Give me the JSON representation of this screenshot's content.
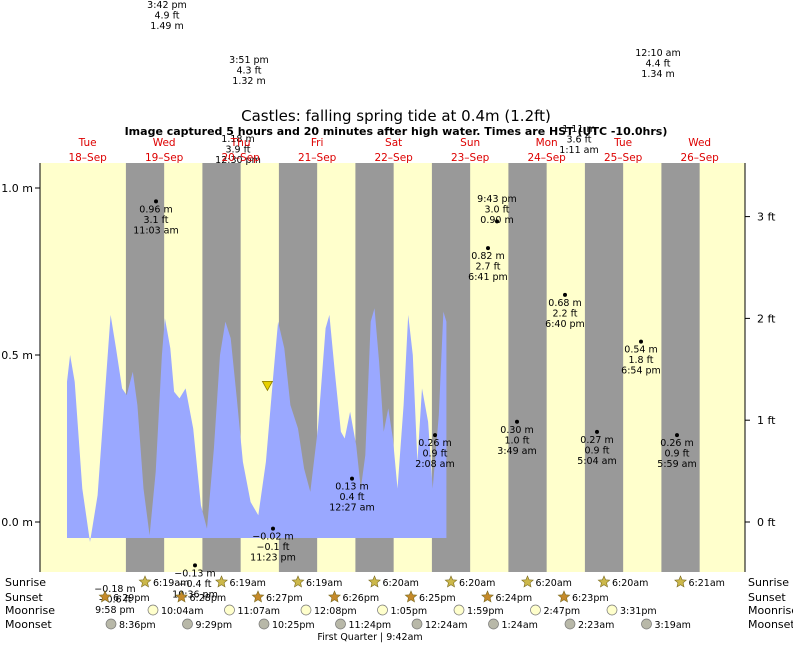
{
  "title": "Castles: falling  spring tide at 0.4m (1.2ft)",
  "subtitle": "Image captured 5 hours and 20 minutes after high water. Times are HST (UTC -10.0hrs)",
  "colors": {
    "day": "#ffffcc",
    "night": "#999999",
    "water": "#9aa8ff",
    "day_label": "#dd0000",
    "star": "#ccb84a",
    "moonrise": "#ffffcc",
    "moonset": "#b8b8a8"
  },
  "chart_data": {
    "type": "area",
    "title": "Castles: falling  spring tide at 0.4m (1.2ft)",
    "y_units_left": "m",
    "y_units_right": "ft",
    "ylim_m": [
      -0.15,
      1.07
    ],
    "left_ticks": [
      {
        "value": 0.0,
        "label": "0.0 m"
      },
      {
        "value": 0.5,
        "label": "0.5 m"
      },
      {
        "value": 1.0,
        "label": "1.0 m"
      }
    ],
    "right_ticks": [
      {
        "value": 0.0,
        "label": "0 ft"
      },
      {
        "value": 1,
        "label": "1 ft"
      },
      {
        "value": 2,
        "label": "2 ft"
      },
      {
        "value": 3,
        "label": "3 ft"
      }
    ],
    "days": [
      {
        "weekday": "Tue",
        "date": "18–Sep"
      },
      {
        "weekday": "Wed",
        "date": "19–Sep"
      },
      {
        "weekday": "Thu",
        "date": "20–Sep"
      },
      {
        "weekday": "Fri",
        "date": "21–Sep"
      },
      {
        "weekday": "Sat",
        "date": "22–Sep"
      },
      {
        "weekday": "Sun",
        "date": "23–Sep"
      },
      {
        "weekday": "Mon",
        "date": "24–Sep"
      },
      {
        "weekday": "Tue",
        "date": "25–Sep"
      },
      {
        "weekday": "Wed",
        "date": "26–Sep"
      }
    ],
    "tide_curve_m": [
      [
        0.0,
        0.42
      ],
      [
        0.04,
        0.5
      ],
      [
        0.1,
        0.42
      ],
      [
        0.2,
        0.1
      ],
      [
        0.3,
        -0.06
      ],
      [
        0.4,
        0.08
      ],
      [
        0.5,
        0.4
      ],
      [
        0.57,
        0.62
      ],
      [
        0.64,
        0.52
      ],
      [
        0.72,
        0.4
      ],
      [
        0.78,
        0.38
      ],
      [
        0.86,
        0.45
      ],
      [
        0.92,
        0.35
      ],
      [
        1.0,
        0.1
      ],
      [
        1.08,
        -0.04
      ],
      [
        1.16,
        0.15
      ],
      [
        1.24,
        0.5
      ],
      [
        1.28,
        0.61
      ],
      [
        1.35,
        0.52
      ],
      [
        1.4,
        0.39
      ],
      [
        1.47,
        0.37
      ],
      [
        1.55,
        0.4
      ],
      [
        1.65,
        0.28
      ],
      [
        1.75,
        0.05
      ],
      [
        1.83,
        -0.02
      ],
      [
        1.92,
        0.22
      ],
      [
        2.0,
        0.5
      ],
      [
        2.07,
        0.6
      ],
      [
        2.14,
        0.55
      ],
      [
        2.22,
        0.37
      ],
      [
        2.3,
        0.18
      ],
      [
        2.4,
        0.06
      ],
      [
        2.5,
        0.02
      ],
      [
        2.6,
        0.18
      ],
      [
        2.7,
        0.45
      ],
      [
        2.76,
        0.6
      ],
      [
        2.84,
        0.52
      ],
      [
        2.92,
        0.35
      ],
      [
        3.02,
        0.28
      ],
      [
        3.1,
        0.16
      ],
      [
        3.18,
        0.09
      ],
      [
        3.28,
        0.28
      ],
      [
        3.38,
        0.58
      ],
      [
        3.43,
        0.62
      ],
      [
        3.5,
        0.45
      ],
      [
        3.58,
        0.27
      ],
      [
        3.63,
        0.25
      ],
      [
        3.7,
        0.33
      ],
      [
        3.78,
        0.23
      ],
      [
        3.84,
        0.1
      ],
      [
        3.9,
        0.2
      ],
      [
        3.97,
        0.6
      ],
      [
        4.02,
        0.64
      ],
      [
        4.08,
        0.48
      ],
      [
        4.14,
        0.27
      ],
      [
        4.2,
        0.34
      ],
      [
        4.26,
        0.25
      ],
      [
        4.32,
        0.1
      ],
      [
        4.4,
        0.35
      ],
      [
        4.46,
        0.62
      ],
      [
        4.52,
        0.5
      ],
      [
        4.58,
        0.18
      ],
      [
        4.64,
        0.4
      ],
      [
        4.72,
        0.3
      ],
      [
        4.78,
        0.1
      ],
      [
        4.86,
        0.32
      ],
      [
        4.92,
        0.63
      ],
      [
        4.96,
        0.6
      ]
    ],
    "extremes": [
      {
        "text": "3:42 pm|4.9 ft|1.49 m",
        "x": 0.7,
        "y": 1.49,
        "clipped": true
      },
      {
        "text": "0.96 m|3.1 ft|11:03 am",
        "x": 0.68,
        "y": 0.96
      },
      {
        "text": "−0.18 m|−0.6 ft|9:58 pm",
        "x": 0.1,
        "y": -0.18,
        "clipped": true
      },
      {
        "text": "−0.13 m|−0.4 ft|10:36 pm",
        "x": 1.35,
        "y": -0.13
      },
      {
        "text": "1.18 m|3.9 ft|12:30 pm",
        "x": 1.4,
        "y": 1.18,
        "clipped": true
      },
      {
        "text": "3:51 pm|4.3 ft|1.32 m",
        "x": 1.4,
        "y": 1.32,
        "clipped": true
      },
      {
        "text": "−0.02 m|−0.1 ft|11:23 pm",
        "x": 1.83,
        "y": -0.02
      },
      {
        "text": "0.13 m|0.4 ft|12:27 am",
        "x": 2.36,
        "y": 0.13
      },
      {
        "text": "0.26 m|0.9 ft|2:08 am",
        "x": 3.3,
        "y": 0.26
      },
      {
        "text": "9:43 pm|3.0 ft|0.90 m",
        "x": 4.35,
        "y": 0.9
      },
      {
        "text": "0.82 m|2.7 ft|6:41 pm",
        "x": 4.35,
        "y": 0.82
      },
      {
        "text": "0.30 m|1.0 ft|3:49 am",
        "x": 4.44,
        "y": 0.3
      },
      {
        "text": "0.68 m|2.2 ft|6:40 pm",
        "x": 5.32,
        "y": 0.68
      },
      {
        "text": "1.11 m|3.6 ft|1:11 am",
        "x": 5.35,
        "y": 1.11,
        "clipped": true
      },
      {
        "text": "0.27 m|0.9 ft|5:04 am",
        "x": 5.48,
        "y": 0.27
      },
      {
        "text": "12:10 am|4.4 ft|1.34 m",
        "x": 5.78,
        "y": 1.34,
        "clipped": true
      },
      {
        "text": "0.54 m|1.8 ft|6:54 pm",
        "x": 6.3,
        "y": 0.54
      },
      {
        "text": "0.26 m|0.9 ft|5:59 am",
        "x": 6.72,
        "y": 0.26
      }
    ],
    "current": {
      "height_m": 0.4,
      "x": 2.62
    }
  },
  "astro": {
    "labels": {
      "sunrise": "Sunrise",
      "sunset": "Sunset",
      "moonrise": "Moonrise",
      "moonset": "Moonset"
    },
    "sunrise": [
      "6:19am",
      "6:19am",
      "6:19am",
      "6:20am",
      "6:20am",
      "6:20am",
      "6:20am",
      "6:21am"
    ],
    "sunset": [
      "6:29pm",
      "6:28pm",
      "6:27pm",
      "6:26pm",
      "6:25pm",
      "6:24pm",
      "6:23pm"
    ],
    "moonrise": [
      "10:04am",
      "11:07am",
      "12:08pm",
      "1:05pm",
      "1:59pm",
      "2:47pm",
      "3:31pm"
    ],
    "moonset": [
      "8:36pm",
      "9:29pm",
      "10:25pm",
      "11:24pm",
      "12:24am",
      "1:24am",
      "2:23am",
      "3:19am"
    ],
    "moon_phase": "First Quarter | 9:42am"
  }
}
